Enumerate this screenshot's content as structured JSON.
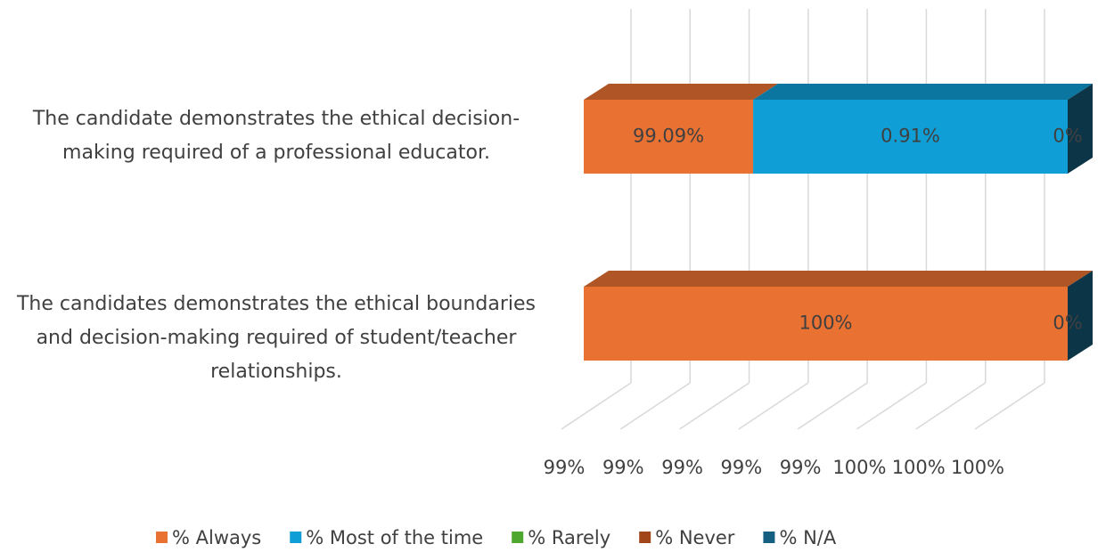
{
  "chart_data": {
    "type": "bar3d_stacked_horizontal",
    "categories": [
      "The candidate demonstrates the ethical decision-making required of a professional educator.",
      "The candidates demonstrates the ethical boundaries and decision-making required of student/teacher relationships."
    ],
    "series": [
      {
        "name": "% Always",
        "color": "#e97132",
        "values": [
          99.09,
          100
        ],
        "value_labels": [
          "99.09%",
          "100%"
        ]
      },
      {
        "name": "% Most of the time",
        "color": "#0f9ed5",
        "values": [
          0.91,
          0
        ],
        "value_labels": [
          "0.91%",
          null
        ]
      },
      {
        "name": "% Rarely",
        "color": "#4ea72e",
        "values": [
          0,
          0
        ],
        "value_labels": [
          null,
          null
        ]
      },
      {
        "name": "% Never",
        "color": "#a0461a",
        "values": [
          0,
          0
        ],
        "value_labels": [
          null,
          null
        ]
      },
      {
        "name": "% N/A",
        "color": "#156082",
        "values": [
          0,
          0
        ],
        "value_labels": [
          "0%",
          "0%"
        ]
      }
    ],
    "xlim": [
      98.6,
      100
    ],
    "xticks": [
      {
        "value": 98.6,
        "label": "99%"
      },
      {
        "value": 98.8,
        "label": "99%"
      },
      {
        "value": 99.0,
        "label": "99%"
      },
      {
        "value": 99.2,
        "label": "99%"
      },
      {
        "value": 99.4,
        "label": "99%"
      },
      {
        "value": 99.6,
        "label": "100%"
      },
      {
        "value": 99.8,
        "label": "100%"
      },
      {
        "value": 100.0,
        "label": "100%"
      }
    ],
    "grid": true,
    "legend": "bottom"
  }
}
